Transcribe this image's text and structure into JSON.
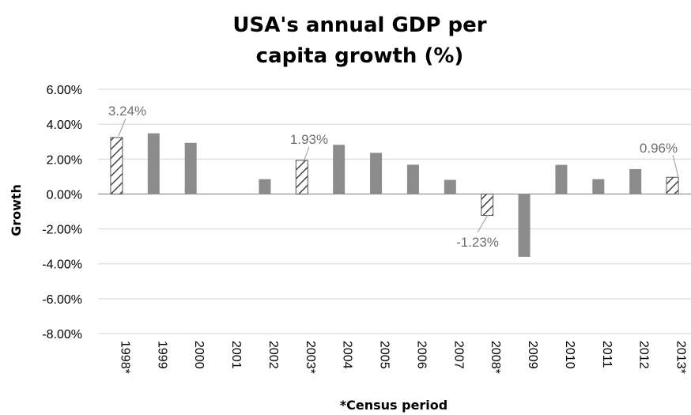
{
  "chart_data": {
    "type": "bar",
    "title": "USA's annual GDP per capita growth (%)",
    "title_lines": [
      "USA's annual GDP per",
      "capita growth (%)"
    ],
    "xlabel": "*Census period",
    "ylabel": "Growth",
    "ylim": [
      -0.08,
      0.06
    ],
    "yticks": [
      0.06,
      0.04,
      0.02,
      0.0,
      -0.02,
      -0.04,
      -0.06,
      -0.08
    ],
    "ytick_labels": [
      "6.00%",
      "4.00%",
      "2.00%",
      "0.00%",
      "-2.00%",
      "-4.00%",
      "-6.00%",
      "-8.00%"
    ],
    "categories": [
      "1998*",
      "1999",
      "2000",
      "2001",
      "2002",
      "2003*",
      "2004",
      "2005",
      "2006",
      "2007",
      "2008*",
      "2009",
      "2010",
      "2011",
      "2012",
      "2013*"
    ],
    "values": [
      0.0324,
      0.0348,
      0.0293,
      0.0,
      0.0085,
      0.0193,
      0.0282,
      0.0236,
      0.0168,
      0.0081,
      -0.0123,
      -0.036,
      0.0167,
      0.0085,
      0.0143,
      0.0096
    ],
    "census_period": [
      true,
      false,
      false,
      false,
      false,
      true,
      false,
      false,
      false,
      false,
      true,
      false,
      false,
      false,
      false,
      true
    ],
    "data_labels": [
      {
        "index": 0,
        "text": "3.24%"
      },
      {
        "index": 5,
        "text": "1.93%"
      },
      {
        "index": 10,
        "text": "-1.23%"
      },
      {
        "index": 15,
        "text": "0.96%"
      }
    ],
    "grid": true,
    "legend": "none",
    "colors": {
      "bar": "#8c8c8c",
      "hatch": "#444444",
      "grid": "#d6d6d6"
    }
  }
}
